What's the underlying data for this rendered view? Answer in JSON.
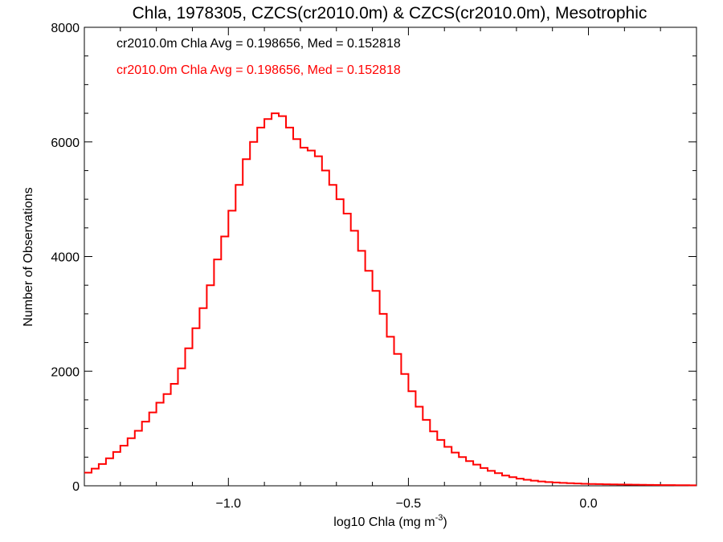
{
  "chart_data": {
    "type": "line",
    "title": "Chla, 1978305, CZCS(cr2010.0m) & CZCS(cr2010.0m), Mesotrophic",
    "xlabel": "log10 Chla (mg m",
    "xlabel_sup": "-3",
    "xlabel_tail": ")",
    "ylabel": "Number of Observations",
    "xlim": [
      -1.4,
      0.3
    ],
    "ylim": [
      0,
      8000
    ],
    "x_ticks": [
      -1.0,
      -0.5,
      0.0
    ],
    "x_tick_labels": [
      "−1.0",
      "−0.5",
      "0.0"
    ],
    "y_ticks": [
      0,
      2000,
      4000,
      6000,
      8000
    ],
    "y_tick_labels": [
      "0",
      "2000",
      "4000",
      "6000",
      "8000"
    ],
    "legend": [
      {
        "text": "cr2010.0m Chla Avg = 0.198656, Med = 0.152818",
        "color": "#000000"
      },
      {
        "text": "cr2010.0m Chla Avg = 0.198656, Med = 0.152818",
        "color": "#ff0000"
      }
    ],
    "legend_position": "top-left",
    "series": [
      {
        "color": "#ff0000",
        "step": true,
        "x": [
          -1.4,
          -1.38,
          -1.36,
          -1.34,
          -1.32,
          -1.3,
          -1.28,
          -1.26,
          -1.24,
          -1.22,
          -1.2,
          -1.18,
          -1.16,
          -1.14,
          -1.12,
          -1.1,
          -1.08,
          -1.06,
          -1.04,
          -1.02,
          -1.0,
          -0.98,
          -0.96,
          -0.94,
          -0.92,
          -0.9,
          -0.88,
          -0.86,
          -0.84,
          -0.82,
          -0.8,
          -0.78,
          -0.76,
          -0.74,
          -0.72,
          -0.7,
          -0.68,
          -0.66,
          -0.64,
          -0.62,
          -0.6,
          -0.58,
          -0.56,
          -0.54,
          -0.52,
          -0.5,
          -0.48,
          -0.46,
          -0.44,
          -0.42,
          -0.4,
          -0.38,
          -0.36,
          -0.34,
          -0.32,
          -0.3,
          -0.28,
          -0.26,
          -0.24,
          -0.22,
          -0.2,
          -0.18,
          -0.16,
          -0.14,
          -0.12,
          -0.1,
          -0.08,
          -0.06,
          -0.04,
          -0.02,
          0.0,
          0.02,
          0.04,
          0.06,
          0.08,
          0.1,
          0.12,
          0.14,
          0.16,
          0.18,
          0.2,
          0.22,
          0.24,
          0.26,
          0.28,
          0.3
        ],
        "y": [
          230,
          300,
          380,
          480,
          590,
          700,
          830,
          960,
          1120,
          1280,
          1450,
          1600,
          1780,
          2050,
          2400,
          2750,
          3100,
          3500,
          3950,
          4350,
          4800,
          5250,
          5700,
          6000,
          6250,
          6400,
          6500,
          6450,
          6250,
          6050,
          5900,
          5850,
          5750,
          5500,
          5250,
          5000,
          4750,
          4450,
          4100,
          3750,
          3400,
          3000,
          2600,
          2300,
          1950,
          1650,
          1380,
          1150,
          950,
          800,
          680,
          580,
          500,
          430,
          370,
          310,
          260,
          220,
          180,
          150,
          125,
          105,
          90,
          75,
          65,
          57,
          50,
          45,
          40,
          35,
          32,
          30,
          27,
          25,
          23,
          21,
          19,
          17,
          15,
          14,
          13,
          12,
          11,
          10,
          9,
          8
        ]
      }
    ]
  }
}
